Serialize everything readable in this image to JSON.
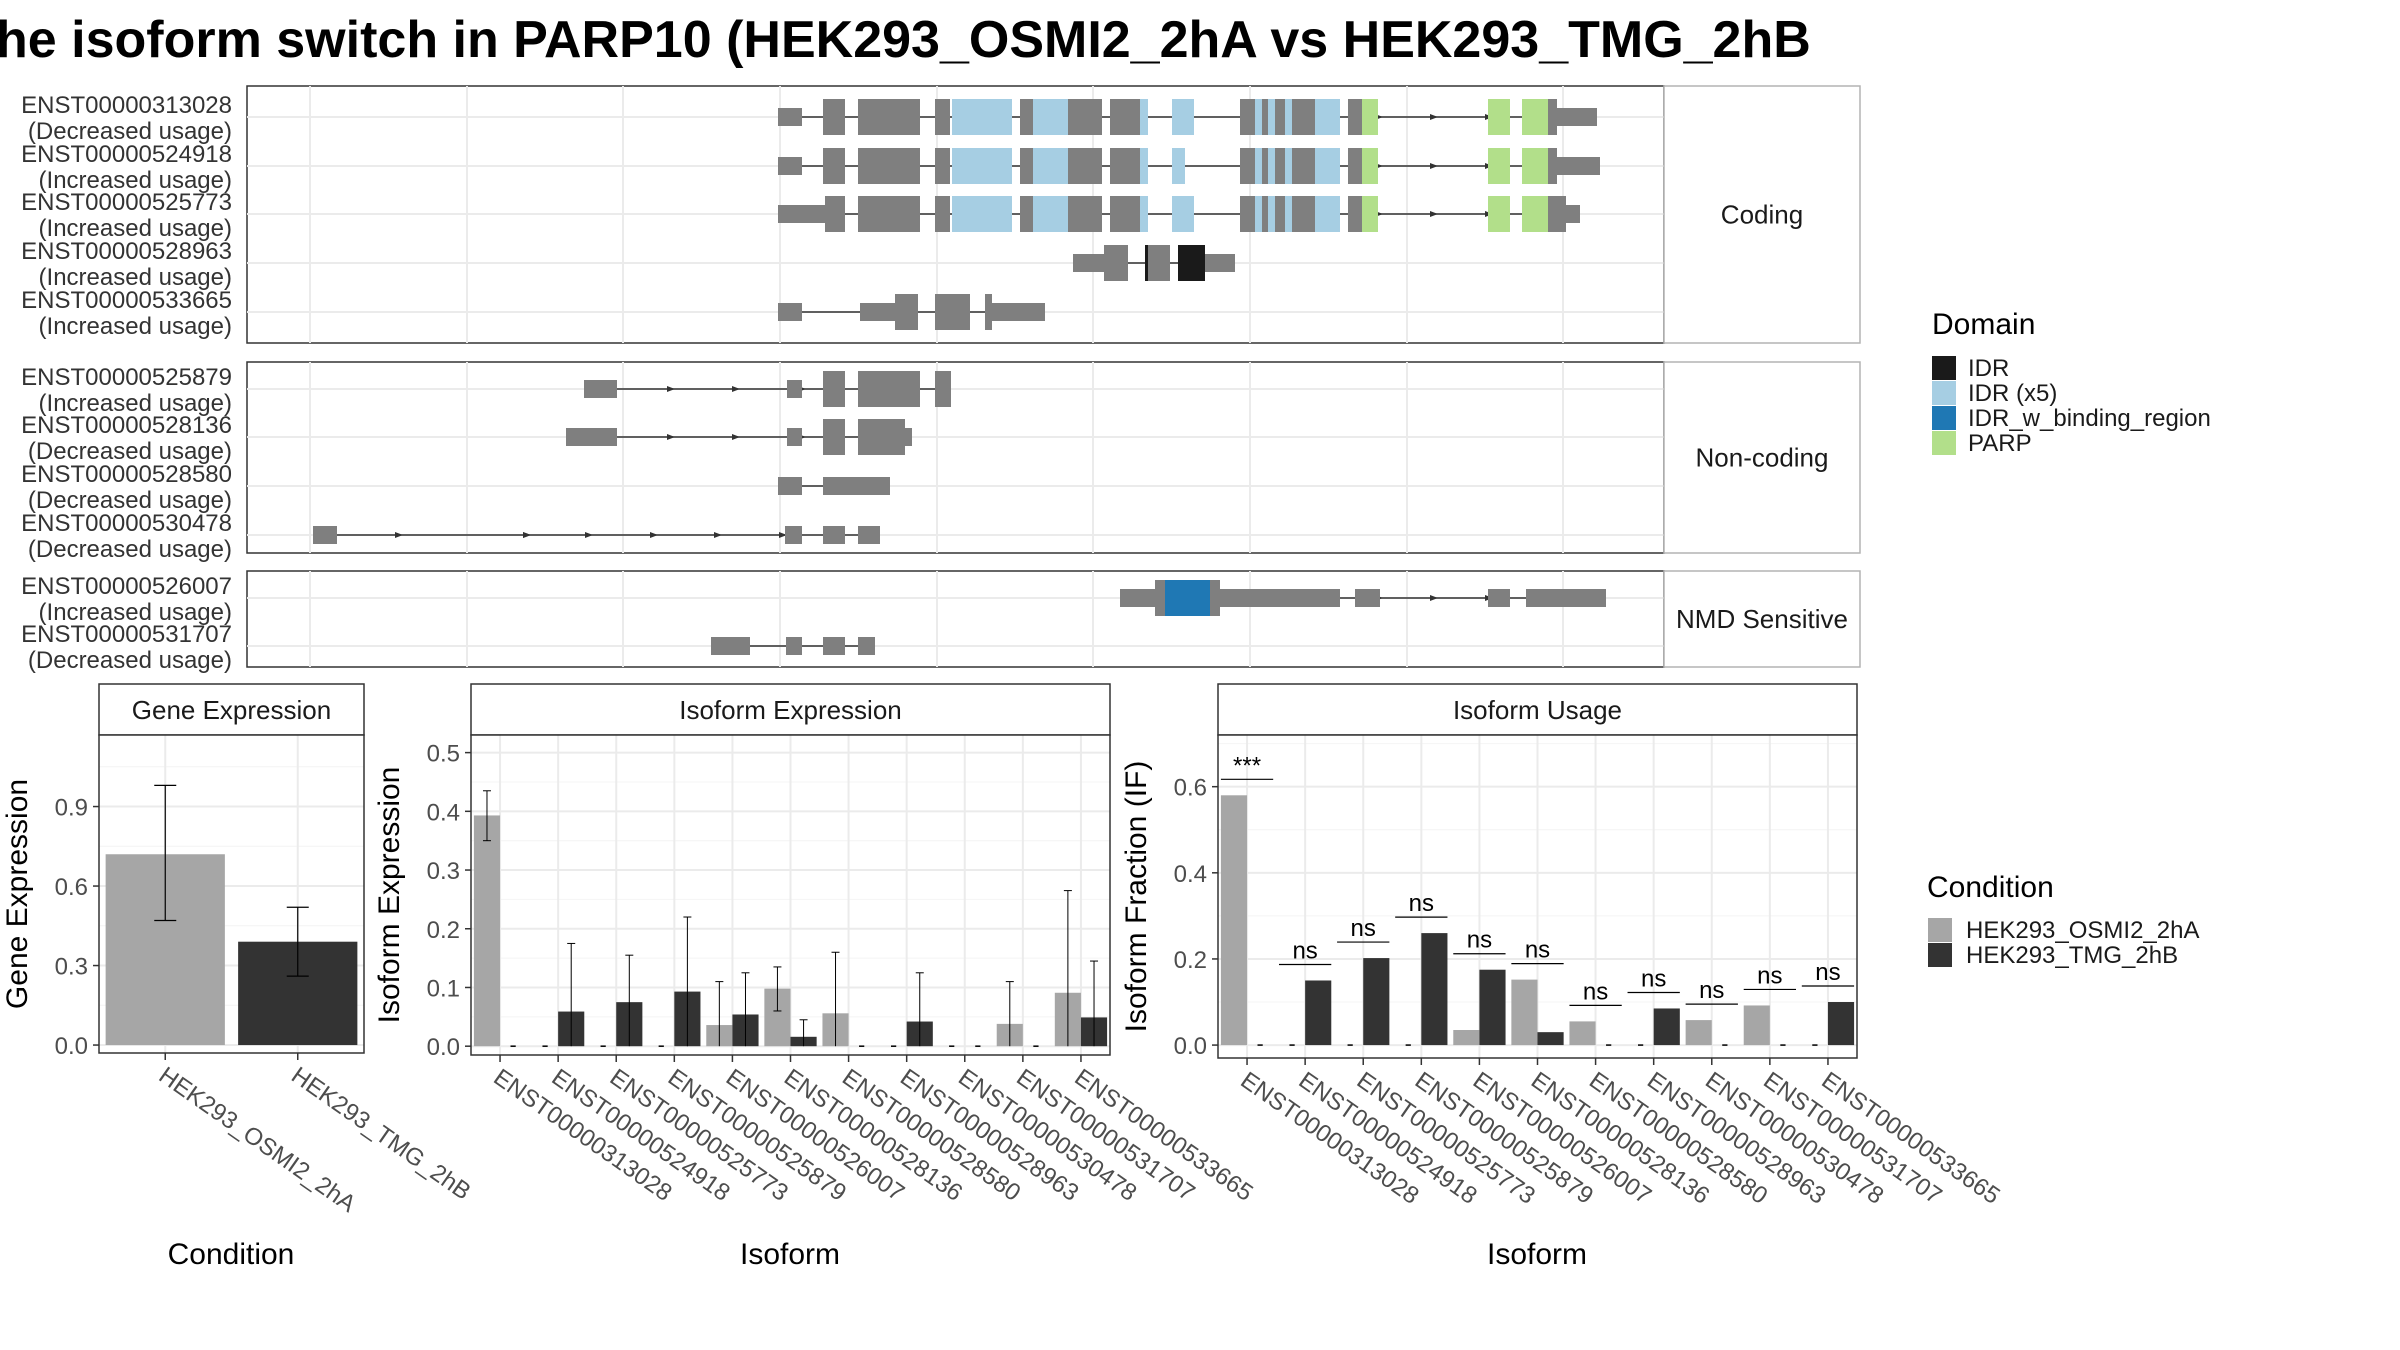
{
  "title": "he isoform switch in PARP10 (HEK293_OSMI2_2hA vs HEK293_TMG_2hB",
  "colors": {
    "exon": "#7f7f7f",
    "IDR": "#1a1a1a",
    "IDR (x5)": "#a6cee3",
    "IDR_w_binding_region": "#1f78b4",
    "PARP": "#b2df8a",
    "cond_a": "#a6a6a6",
    "cond_b": "#333333"
  },
  "transcripts": {
    "panels": [
      {
        "label": "Coding",
        "rows": [
          {
            "id": "ENST00000313028",
            "usage": "(Decreased usage)"
          },
          {
            "id": "ENST00000524918",
            "usage": "(Increased usage)"
          },
          {
            "id": "ENST00000525773",
            "usage": "(Increased usage)"
          },
          {
            "id": "ENST00000528963",
            "usage": "(Increased usage)"
          },
          {
            "id": "ENST00000533665",
            "usage": "(Increased usage)"
          }
        ]
      },
      {
        "label": "Non-coding",
        "rows": [
          {
            "id": "ENST00000525879",
            "usage": "(Increased usage)"
          },
          {
            "id": "ENST00000528136",
            "usage": "(Decreased usage)"
          },
          {
            "id": "ENST00000528580",
            "usage": "(Decreased usage)"
          },
          {
            "id": "ENST00000530478",
            "usage": "(Decreased usage)"
          }
        ]
      },
      {
        "label": "NMD Sensitive",
        "rows": [
          {
            "id": "ENST00000526007",
            "usage": "(Increased usage)"
          },
          {
            "id": "ENST00000531707",
            "usage": "(Decreased usage)"
          }
        ]
      }
    ]
  },
  "domain_legend": {
    "title": "Domain",
    "items": [
      {
        "label": "IDR",
        "color": "#1a1a1a"
      },
      {
        "label": "IDR (x5)",
        "color": "#a6cee3"
      },
      {
        "label": "IDR_w_binding_region",
        "color": "#1f78b4"
      },
      {
        "label": "PARP",
        "color": "#b2df8a"
      }
    ]
  },
  "condition_legend": {
    "title": "Condition",
    "items": [
      {
        "label": "HEK293_OSMI2_2hA",
        "color": "#a6a6a6"
      },
      {
        "label": "HEK293_TMG_2hB",
        "color": "#333333"
      }
    ]
  },
  "chart_data": [
    {
      "type": "bar",
      "title": "Gene Expression",
      "xlabel": "Condition",
      "ylabel": "Gene Expression",
      "categories": [
        "HEK293_OSMI2_2hA",
        "HEK293_TMG_2hB"
      ],
      "values": [
        0.72,
        0.39
      ],
      "error_low": [
        0.47,
        0.26
      ],
      "error_high": [
        0.98,
        0.52
      ],
      "yticks": [
        "0.0",
        "0.3",
        "0.6",
        "0.9"
      ],
      "ylim": [
        -0.03,
        1.17
      ]
    },
    {
      "type": "bar",
      "title": "Isoform Expression",
      "xlabel": "Isoform",
      "ylabel": "Isoform Expression",
      "categories": [
        "ENST00000313028",
        "ENST00000524918",
        "ENST00000525773",
        "ENST00000525879",
        "ENST00000526007",
        "ENST00000528136",
        "ENST00000528580",
        "ENST00000528963",
        "ENST00000530478",
        "ENST00000531707",
        "ENST00000533665"
      ],
      "series": [
        {
          "name": "HEK293_OSMI2_2hA",
          "values": [
            0.393,
            0.0,
            0.0,
            0.0,
            0.036,
            0.098,
            0.056,
            0.0,
            0.0,
            0.038,
            0.091
          ],
          "error_low": [
            0.35,
            0.0,
            0.0,
            0.0,
            0.0,
            0.06,
            0.0,
            0.0,
            0.0,
            0.0,
            0.0
          ],
          "error_high": [
            0.435,
            0.0,
            0.0,
            0.0,
            0.11,
            0.135,
            0.16,
            0.0,
            0.0,
            0.11,
            0.265
          ]
        },
        {
          "name": "HEK293_TMG_2hB",
          "values": [
            0.0,
            0.059,
            0.075,
            0.093,
            0.054,
            0.016,
            0.0,
            0.042,
            0.0,
            0.0,
            0.049
          ],
          "error_low": [
            0.0,
            0.0,
            0.0,
            0.0,
            0.0,
            0.0,
            0.0,
            0.0,
            0.0,
            0.0,
            0.0
          ],
          "error_high": [
            0.0,
            0.175,
            0.155,
            0.22,
            0.125,
            0.045,
            0.0,
            0.125,
            0.0,
            0.0,
            0.145
          ]
        }
      ],
      "yticks": [
        "0.0",
        "0.1",
        "0.2",
        "0.3",
        "0.4",
        "0.5"
      ],
      "ylim": [
        -0.015,
        0.53
      ]
    },
    {
      "type": "bar",
      "title": "Isoform Usage",
      "xlabel": "Isoform",
      "ylabel": "Isoform Fraction (IF)",
      "categories": [
        "ENST00000313028",
        "ENST00000524918",
        "ENST00000525773",
        "ENST00000525879",
        "ENST00000526007",
        "ENST00000528136",
        "ENST00000528580",
        "ENST00000528963",
        "ENST00000530478",
        "ENST00000531707",
        "ENST00000533665"
      ],
      "series": [
        {
          "name": "HEK293_OSMI2_2hA",
          "values": [
            0.58,
            0.0,
            0.0,
            0.0,
            0.035,
            0.152,
            0.055,
            0.0,
            0.058,
            0.092,
            0.0
          ]
        },
        {
          "name": "HEK293_TMG_2hB",
          "values": [
            0.0,
            0.15,
            0.202,
            0.26,
            0.175,
            0.03,
            0.0,
            0.085,
            0.0,
            0.0,
            0.1
          ]
        }
      ],
      "significance": [
        "***",
        "ns",
        "ns",
        "ns",
        "ns",
        "ns",
        "ns",
        "ns",
        "ns",
        "ns",
        "ns"
      ],
      "yticks": [
        "0.0",
        "0.2",
        "0.4",
        "0.6"
      ],
      "ylim": [
        -0.03,
        0.72
      ]
    }
  ]
}
